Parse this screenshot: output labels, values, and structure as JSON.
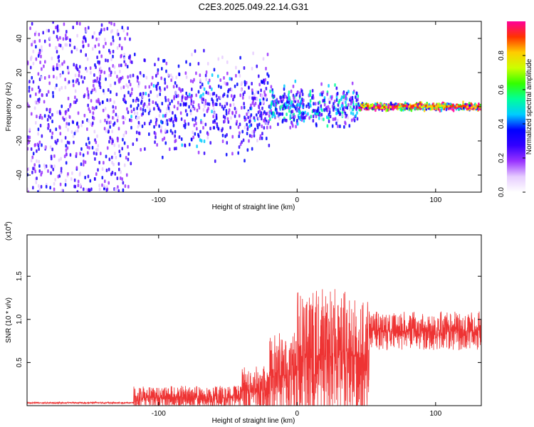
{
  "title": "C2E3.2025.049.22.14.G31",
  "chart_data": [
    {
      "type": "heatmap",
      "xlabel": "Height of straight line (km)",
      "ylabel": "Frequency (Hz)",
      "xlim": [
        -195,
        133
      ],
      "ylim": [
        -50,
        50
      ],
      "x_ticks": [
        -100,
        0,
        100
      ],
      "y_ticks": [
        -40,
        -20,
        0,
        20,
        40
      ],
      "colorbar": {
        "label": "Normalized spectral amplitude",
        "range": [
          0,
          1
        ],
        "ticks": [
          "0.0",
          "0.2",
          "0.4",
          "0.6",
          "0.8"
        ],
        "colors": [
          "#ffffff",
          "#e6ccff",
          "#9933ff",
          "#3300ff",
          "#0000ff",
          "#00ccff",
          "#00ff99",
          "#33ff00",
          "#ccff00",
          "#ffcc00",
          "#ff3300",
          "#ff0099"
        ]
      },
      "regions": [
        {
          "x": [
            -195,
            -120
          ],
          "freq_spread_hz": 50,
          "amplitude": 0.25
        },
        {
          "x": [
            -120,
            -20
          ],
          "freq_spread_hz": 28,
          "amplitude": 0.3
        },
        {
          "x": [
            -20,
            45
          ],
          "freq_spread_hz": 12,
          "amplitude": 0.4
        },
        {
          "x": [
            45,
            133
          ],
          "freq_spread_hz": 2,
          "amplitude": 0.9
        }
      ]
    },
    {
      "type": "line",
      "xlabel": "Height of straight line (km)",
      "ylabel": "SNR (10 * v/v)",
      "y_exponent_label": "(x10",
      "y_exponent_sup": "4",
      "y_exponent_close": ")",
      "xlim": [
        -195,
        133
      ],
      "ylim": [
        0,
        1.98
      ],
      "x_ticks": [
        -100,
        0,
        100
      ],
      "y_ticks": [
        "0.5",
        "1.0",
        "1.5"
      ],
      "y_tick_values": [
        0.5,
        1.0,
        1.5
      ],
      "line_color": "#ee3333",
      "segments": [
        {
          "x": [
            -195,
            -118
          ],
          "base": 0.03,
          "noise": 0.02
        },
        {
          "x": [
            -118,
            -40
          ],
          "base": 0.05,
          "noise": 0.28
        },
        {
          "x": [
            -40,
            -20
          ],
          "base": 0.1,
          "noise": 0.55
        },
        {
          "x": [
            -20,
            0
          ],
          "base": 0.2,
          "noise": 1.0
        },
        {
          "x": [
            0,
            52
          ],
          "base": 0.35,
          "noise": 1.55
        },
        {
          "x": [
            52,
            133
          ],
          "base": 0.8,
          "noise": 0.45
        }
      ]
    }
  ]
}
